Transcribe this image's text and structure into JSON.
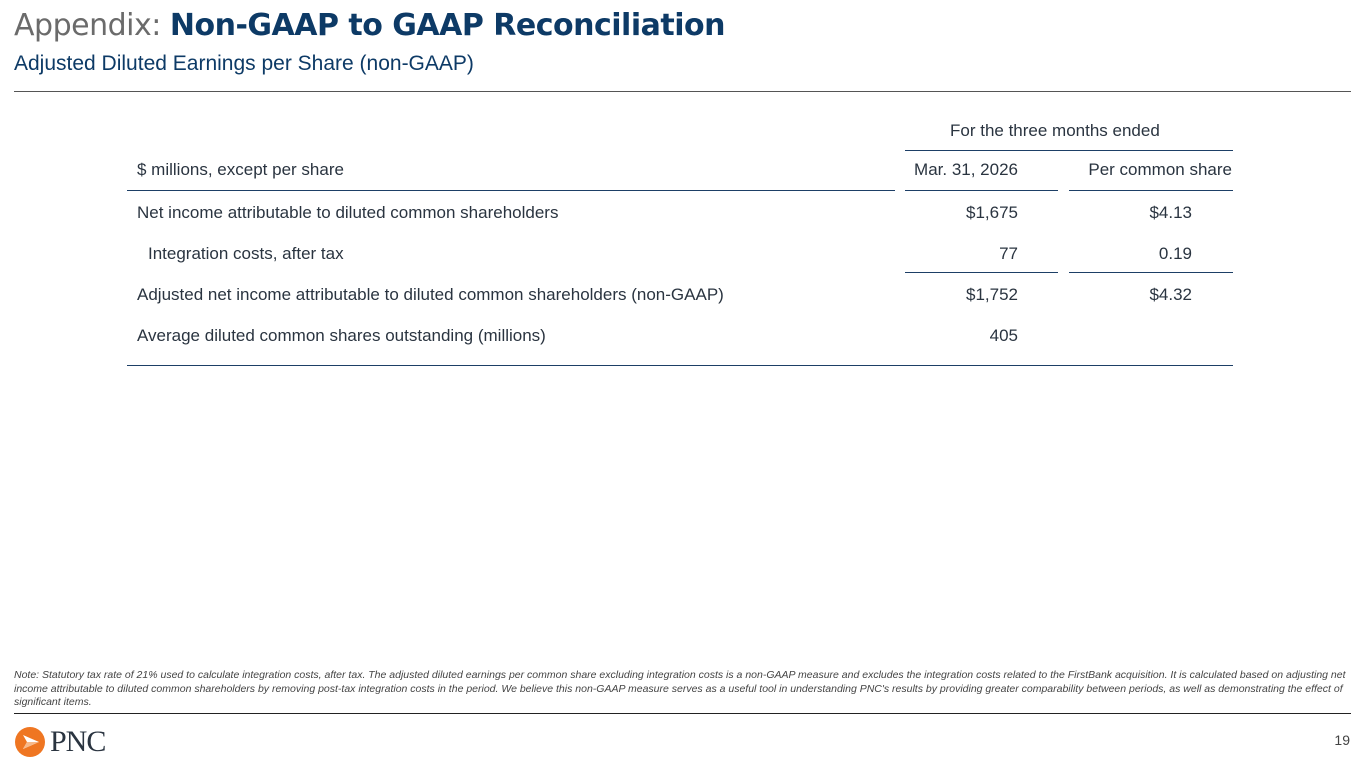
{
  "header": {
    "title_prefix": "Appendix:",
    "title_main": "Non-GAAP to GAAP Reconciliation",
    "subtitle": "Adjusted Diluted Earnings per Share (non-GAAP)"
  },
  "table": {
    "group_header": "For the three months ended",
    "columns": [
      "$ millions, except per share",
      "Mar. 31, 2026",
      "Per common share"
    ],
    "rows": [
      {
        "label": "Net income attributable to diluted common shareholders",
        "value": "$1,675",
        "per_share": "$4.13"
      },
      {
        "label": "Integration costs, after tax",
        "value": "77",
        "per_share": "0.19"
      },
      {
        "label": "Adjusted net income attributable to diluted common shareholders (non-GAAP)",
        "value": "$1,752",
        "per_share": "$4.32"
      },
      {
        "label": "Average diluted common shares outstanding (millions)",
        "value": "405",
        "per_share": ""
      }
    ]
  },
  "footer": {
    "note": "Note: Statutory tax rate of 21% used to calculate integration costs, after tax. The adjusted diluted earnings per common share excluding integration costs is a non-GAAP measure and excludes the integration costs related to the FirstBank acquisition. It is calculated based on adjusting net income attributable to diluted common shareholders by removing post-tax integration costs in the period. We believe this non-GAAP measure serves as a useful tool in understanding PNC's results by providing greater comparability between periods, as well as demonstrating the effect of significant items.",
    "logo_text": "PNC",
    "page_number": "19"
  },
  "colors": {
    "brand_blue": "#0d3a66",
    "brand_orange": "#ef7622"
  }
}
